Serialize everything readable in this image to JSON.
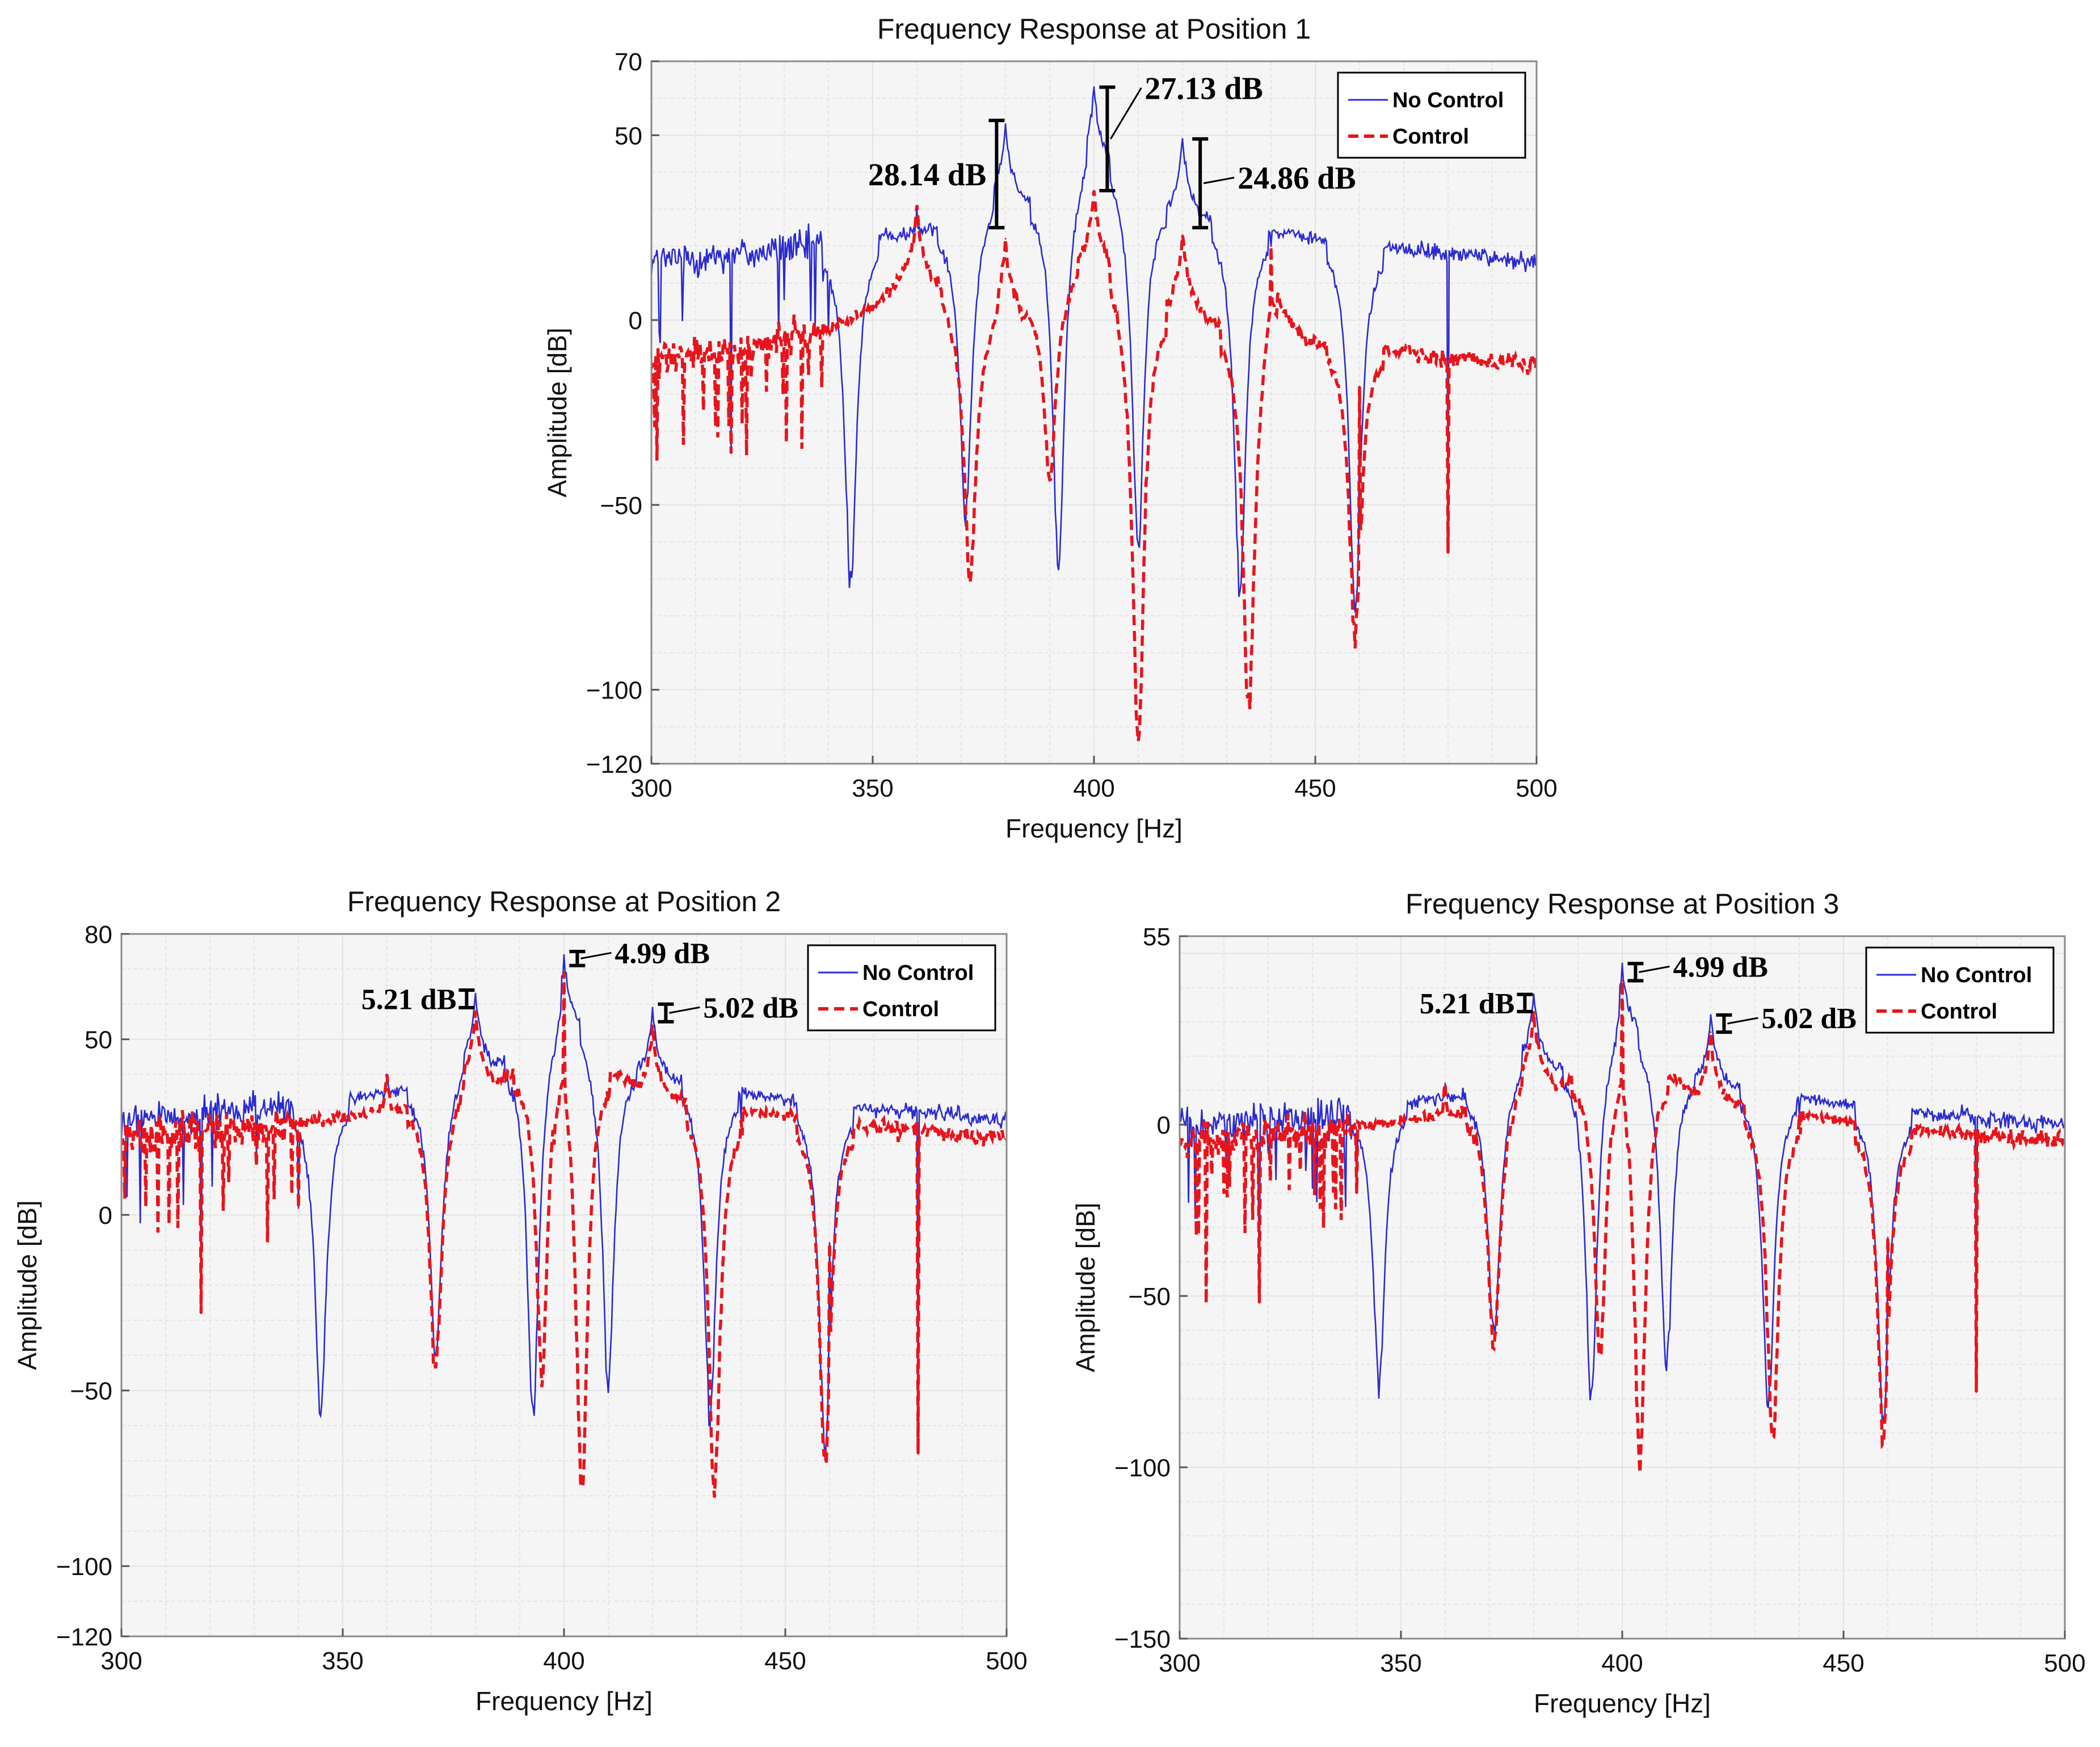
{
  "colors": {
    "no_control": "#2a2ad0",
    "control": "#e8141c",
    "grid": "#e3e3e3",
    "plot_bg": "#f5f5f5"
  },
  "chart_data": [
    {
      "type": "line",
      "title": "Frequency Response at Position 1",
      "xlabel": "Frequency [Hz]",
      "ylabel": "Amplitude [dB]",
      "xlim": [
        300,
        500
      ],
      "ylim": [
        -120,
        70
      ],
      "xticks": [
        300,
        350,
        400,
        450,
        500
      ],
      "yticks": [
        -120,
        -100,
        -50,
        0,
        50,
        70
      ],
      "grid": true,
      "legend_position": "top-right",
      "baseline_level": -88,
      "series": [
        {
          "name": "No Control",
          "peaks": [
            {
              "f": 318,
              "dB": -36
            },
            {
              "f": 340,
              "dB": -3
            },
            {
              "f": 360,
              "dB": 30
            },
            {
              "f": 380,
              "dB": 53
            },
            {
              "f": 400,
              "dB": 63
            },
            {
              "f": 420,
              "dB": 49
            },
            {
              "f": 440,
              "dB": 20
            },
            {
              "f": 460,
              "dB": -18
            },
            {
              "f": 480,
              "dB": -63
            }
          ],
          "notches": [
            {
              "f": 345,
              "dB": -72
            },
            {
              "f": 371,
              "dB": -53
            },
            {
              "f": 392,
              "dB": -68
            },
            {
              "f": 410,
              "dB": -62
            },
            {
              "f": 433,
              "dB": -72
            },
            {
              "f": 459,
              "dB": -78
            }
          ]
        },
        {
          "name": "Control",
          "peaks": [
            {
              "f": 318,
              "dB": -36
            },
            {
              "f": 340,
              "dB": -3
            },
            {
              "f": 360,
              "dB": 31
            },
            {
              "f": 380,
              "dB": 22
            },
            {
              "f": 400,
              "dB": 35
            },
            {
              "f": 420,
              "dB": 23
            },
            {
              "f": 440,
              "dB": 20
            },
            {
              "f": 460,
              "dB": -18
            },
            {
              "f": 480,
              "dB": -63
            }
          ],
          "notches": [
            {
              "f": 372,
              "dB": -70
            },
            {
              "f": 390,
              "dB": -43
            },
            {
              "f": 410,
              "dB": -115
            },
            {
              "f": 435,
              "dB": -105
            },
            {
              "f": 459,
              "dB": -85
            }
          ]
        }
      ],
      "annotations": [
        {
          "text": "28.14 dB",
          "f": 378,
          "low": 25,
          "high": 54,
          "label_side": "left"
        },
        {
          "text": "27.13 dB",
          "f": 403,
          "low": 35,
          "high": 63,
          "label_side": "right"
        },
        {
          "text": "24.86 dB",
          "f": 424,
          "low": 25,
          "high": 49,
          "label_side": "right"
        }
      ]
    },
    {
      "type": "line",
      "title": "Frequency Response at Position 2",
      "xlabel": "Frequency [Hz]",
      "ylabel": "Amplitude [dB]",
      "xlim": [
        300,
        500
      ],
      "ylim": [
        -120,
        80
      ],
      "xticks": [
        300,
        350,
        400,
        450,
        500
      ],
      "yticks": [
        -120,
        -100,
        -50,
        0,
        50,
        80
      ],
      "grid": true,
      "legend_position": "top-right",
      "baseline_level": -76,
      "series": [
        {
          "name": "No Control",
          "peaks": [
            {
              "f": 318,
              "dB": -28
            },
            {
              "f": 340,
              "dB": 2
            },
            {
              "f": 360,
              "dB": 40
            },
            {
              "f": 380,
              "dB": 63
            },
            {
              "f": 400,
              "dB": 74
            },
            {
              "f": 420,
              "dB": 59
            },
            {
              "f": 440,
              "dB": 27
            },
            {
              "f": 460,
              "dB": -8
            },
            {
              "f": 480,
              "dB": -68
            }
          ],
          "notches": [
            {
              "f": 345,
              "dB": -55
            },
            {
              "f": 371,
              "dB": -40
            },
            {
              "f": 393,
              "dB": -58
            },
            {
              "f": 410,
              "dB": -48
            },
            {
              "f": 433,
              "dB": -58
            },
            {
              "f": 459,
              "dB": -68
            }
          ]
        },
        {
          "name": "Control",
          "peaks": [
            {
              "f": 318,
              "dB": -28
            },
            {
              "f": 340,
              "dB": 2
            },
            {
              "f": 360,
              "dB": 40
            },
            {
              "f": 380,
              "dB": 58
            },
            {
              "f": 400,
              "dB": 69
            },
            {
              "f": 420,
              "dB": 54
            },
            {
              "f": 440,
              "dB": 27
            },
            {
              "f": 460,
              "dB": -8
            },
            {
              "f": 480,
              "dB": -68
            }
          ],
          "notches": [
            {
              "f": 371,
              "dB": -45
            },
            {
              "f": 395,
              "dB": -45
            },
            {
              "f": 404,
              "dB": -80
            },
            {
              "f": 434,
              "dB": -80
            },
            {
              "f": 459,
              "dB": -70
            }
          ]
        }
      ],
      "annotations": [
        {
          "text": "5.21 dB",
          "f": 378,
          "low": 59,
          "high": 64,
          "label_side": "left"
        },
        {
          "text": "4.99 dB",
          "f": 403,
          "low": 71,
          "high": 75,
          "label_side": "right"
        },
        {
          "text": "5.02 dB",
          "f": 423,
          "low": 55,
          "high": 60,
          "label_side": "right"
        }
      ]
    },
    {
      "type": "line",
      "title": "Frequency Response at Position 3",
      "xlabel": "Frequency [Hz]",
      "ylabel": "Amplitude [dB]",
      "xlim": [
        300,
        500
      ],
      "ylim": [
        -150,
        55
      ],
      "xticks": [
        300,
        350,
        400,
        450,
        500
      ],
      "yticks": [
        -150,
        -100,
        -50,
        0,
        55
      ],
      "grid": true,
      "legend_position": "top-right",
      "baseline_level": -92,
      "series": [
        {
          "name": "No Control",
          "peaks": [
            {
              "f": 318,
              "dB": -52
            },
            {
              "f": 340,
              "dB": -20
            },
            {
              "f": 360,
              "dB": 12
            },
            {
              "f": 380,
              "dB": 38
            },
            {
              "f": 400,
              "dB": 47
            },
            {
              "f": 420,
              "dB": 32
            },
            {
              "f": 440,
              "dB": 3
            },
            {
              "f": 460,
              "dB": -33
            },
            {
              "f": 480,
              "dB": -78
            }
          ],
          "notches": [
            {
              "f": 345,
              "dB": -75
            },
            {
              "f": 371,
              "dB": -63
            },
            {
              "f": 393,
              "dB": -80
            },
            {
              "f": 410,
              "dB": -72
            },
            {
              "f": 433,
              "dB": -82
            },
            {
              "f": 459,
              "dB": -88
            }
          ]
        },
        {
          "name": "Control",
          "peaks": [
            {
              "f": 318,
              "dB": -52
            },
            {
              "f": 340,
              "dB": -20
            },
            {
              "f": 360,
              "dB": 12
            },
            {
              "f": 380,
              "dB": 33
            },
            {
              "f": 400,
              "dB": 42
            },
            {
              "f": 420,
              "dB": 27
            },
            {
              "f": 440,
              "dB": 3
            },
            {
              "f": 460,
              "dB": -33
            },
            {
              "f": 480,
              "dB": -78
            }
          ],
          "notches": [
            {
              "f": 371,
              "dB": -67
            },
            {
              "f": 395,
              "dB": -68
            },
            {
              "f": 404,
              "dB": -97
            },
            {
              "f": 434,
              "dB": -92
            },
            {
              "f": 459,
              "dB": -90
            }
          ]
        }
      ],
      "annotations": [
        {
          "text": "5.21 dB",
          "f": 378,
          "low": 33,
          "high": 38,
          "label_side": "left"
        },
        {
          "text": "4.99 dB",
          "f": 403,
          "low": 42,
          "high": 47,
          "label_side": "right"
        },
        {
          "text": "5.02 dB",
          "f": 423,
          "low": 27,
          "high": 32,
          "label_side": "right"
        }
      ]
    }
  ]
}
